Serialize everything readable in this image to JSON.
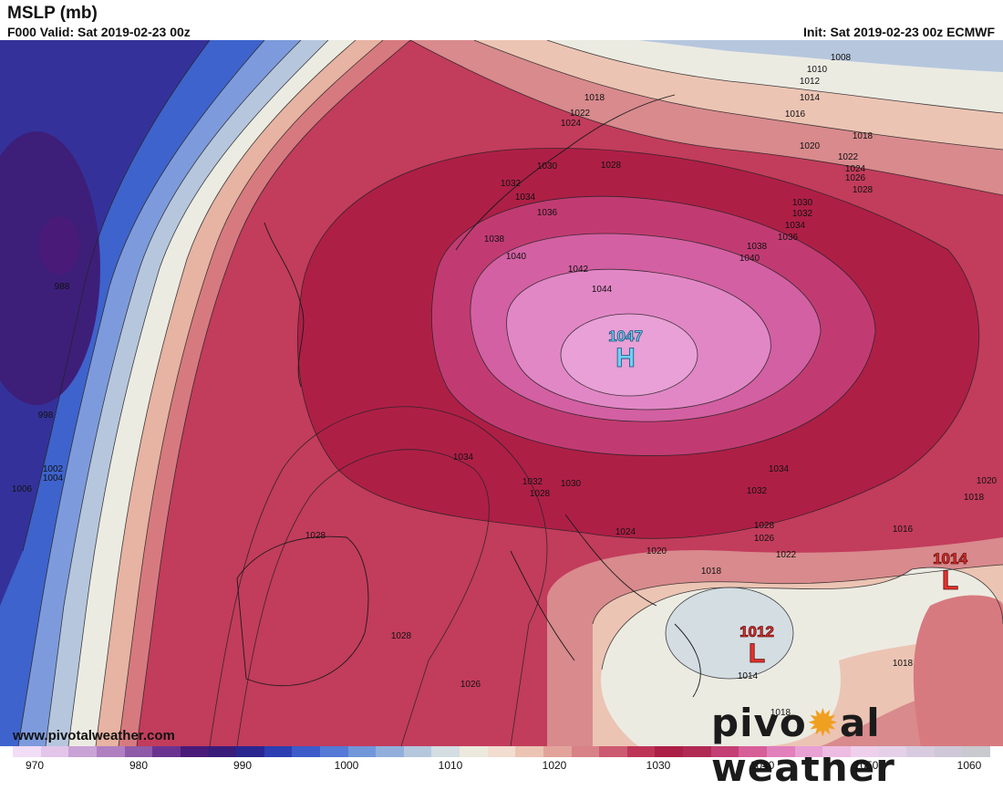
{
  "header": {
    "title": "MSLP (mb)",
    "valid": "F000 Valid: Sat 2019-02-23 00z",
    "init": "Init: Sat 2019-02-23 00z ECMWF"
  },
  "footer": {
    "credit": "www.pivotalweather.com",
    "brand_left": "pivo",
    "brand_right": "al weather"
  },
  "pressure_systems": [
    {
      "type": "H",
      "value": "1047",
      "color": "#6fd0f5"
    },
    {
      "type": "L",
      "value": "1014",
      "color": "#e8302a"
    },
    {
      "type": "L",
      "value": "1012",
      "color": "#e8302a"
    }
  ],
  "isobar_labels": [
    "1008",
    "1010",
    "1012",
    "1014",
    "1016",
    "1018",
    "1020",
    "1022",
    "1024",
    "1026",
    "1028",
    "1018",
    "1022",
    "1024",
    "1030",
    "1028",
    "1032",
    "1034",
    "1036",
    "1030",
    "1032",
    "1034",
    "1036",
    "1038",
    "1040",
    "1038",
    "1040",
    "1042",
    "1044",
    "988",
    "998",
    "1002",
    "1004",
    "1006",
    "1034",
    "1032",
    "1030",
    "1028",
    "1034",
    "1032",
    "1028",
    "1026",
    "1024",
    "1020",
    "1018",
    "1022",
    "1016",
    "1020",
    "1018",
    "1028",
    "1028",
    "1026",
    "1014",
    "1018",
    "1018"
  ],
  "colorbar": {
    "ticks": [
      "970",
      "980",
      "990",
      "1000",
      "1010",
      "1020",
      "1030",
      "1040",
      "1050",
      "1060"
    ],
    "colors": [
      "#f1ddf5",
      "#e3c5ea",
      "#caa3d6",
      "#b07fc2",
      "#8f5aa8",
      "#6a3390",
      "#4a1a78",
      "#3a1c7a",
      "#2a2690",
      "#2c3fb2",
      "#3d5bc9",
      "#5479d6",
      "#7196d9",
      "#92afdb",
      "#b4c7dd",
      "#d3dde2",
      "#ece9dd",
      "#f2ddd0",
      "#ecc4b4",
      "#e2a49a",
      "#d88187",
      "#cc5a70",
      "#be3457",
      "#ac1f47",
      "#b02a54",
      "#c43f74",
      "#d65f98",
      "#e180bd",
      "#e9a0d5",
      "#eebbe2",
      "#eed0ec",
      "#e4d1e9",
      "#d8cbe0",
      "#cec8d8",
      "#c9c9d0"
    ]
  },
  "colors": {
    "deep_low": "#3d1f7a",
    "blue": "#3a5fd0",
    "neutral": "#ecebe2",
    "red": "#b51f48",
    "magenta": "#d87bc2"
  }
}
